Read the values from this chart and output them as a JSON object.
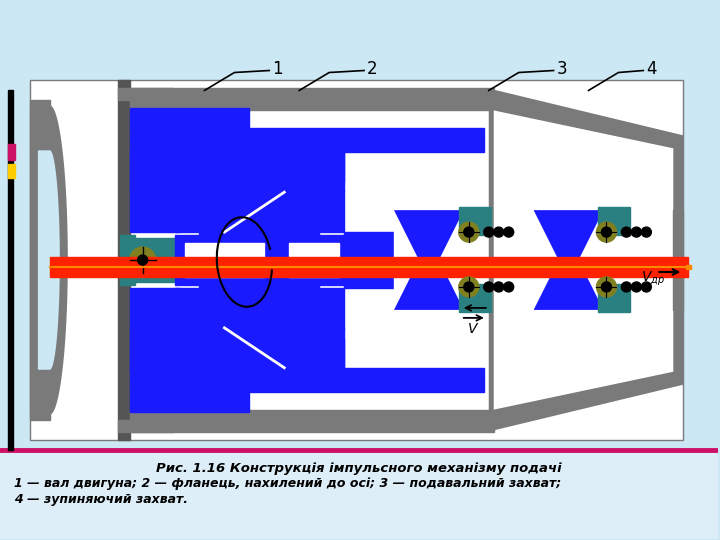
{
  "bg_color": "#cce8f4",
  "caption_bg": "#ddeef8",
  "pink_line": "#cc1166",
  "title_line1": "Рис. 1.16 Конструкція імпульсного механізму подачі",
  "title_line2": "1 — вал двигуна; 2 — фланець, нахилений до осі; 3 — подавальний захват;",
  "title_line3": "4 — зупиняючий захват.",
  "gray": "#7a7a7a",
  "gray_light": "#aaaaaa",
  "gray_dark": "#555555",
  "blue": "#1a1aff",
  "red": "#ff2200",
  "orange": "#ff8800",
  "teal": "#2a8080",
  "olive": "#808020",
  "white": "#ffffff",
  "black": "#000000",
  "pink_accent": "#cc1166",
  "yellow_accent": "#ffcc00",
  "diagram_bg": "#ffffff"
}
